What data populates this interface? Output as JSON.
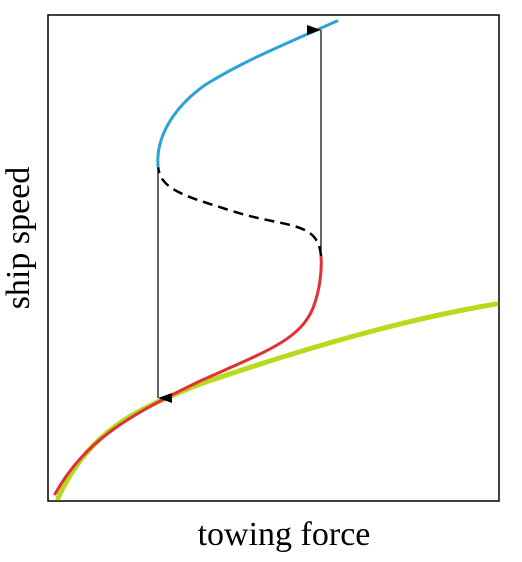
{
  "axes": {
    "x_label": "towing force",
    "y_label": "ship speed"
  },
  "curves": {
    "green": {
      "color": "#b5db1c",
      "style": "solid"
    },
    "red": {
      "color": "#e0303a",
      "style": "solid"
    },
    "dashed": {
      "color": "#000000",
      "style": "dashed"
    },
    "blue": {
      "color": "#2aa3d6",
      "style": "solid"
    }
  },
  "arrows": [
    {
      "direction": "down",
      "color": "#000000"
    },
    {
      "direction": "up",
      "color": "#000000"
    }
  ]
}
